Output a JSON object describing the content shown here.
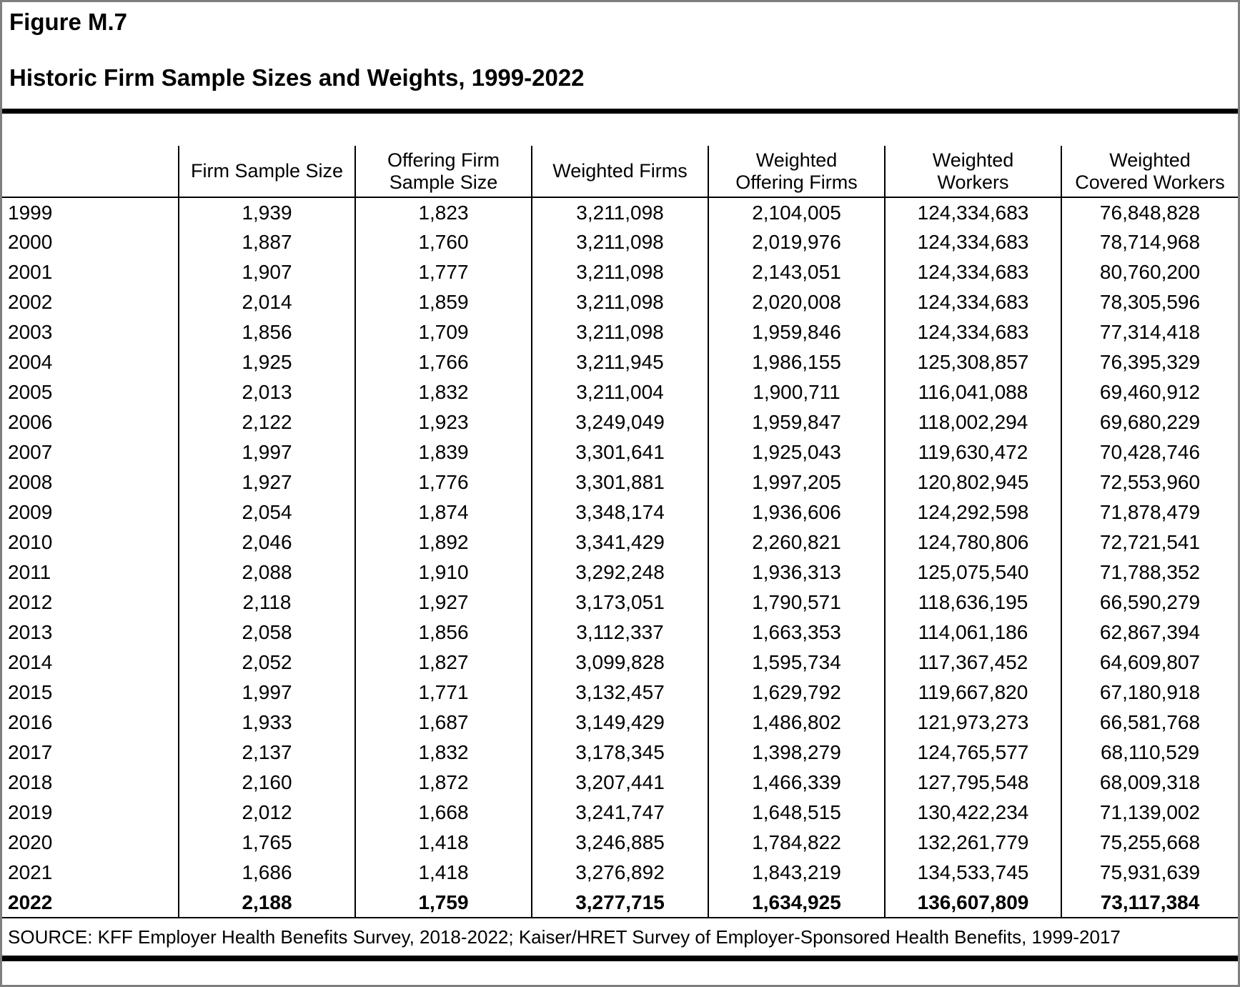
{
  "figure": {
    "label": "Figure M.7",
    "title": "Historic Firm Sample Sizes and Weights, 1999-2022"
  },
  "table": {
    "columns": [
      "",
      "Firm Sample Size",
      "Offering Firm\nSample Size",
      "Weighted Firms",
      "Weighted\nOffering Firms",
      "Weighted\nWorkers",
      "Weighted\nCovered Workers"
    ],
    "rows": [
      {
        "year": "1999",
        "values": [
          "1,939",
          "1,823",
          "3,211,098",
          "2,104,005",
          "124,334,683",
          "76,848,828"
        ],
        "bold": false
      },
      {
        "year": "2000",
        "values": [
          "1,887",
          "1,760",
          "3,211,098",
          "2,019,976",
          "124,334,683",
          "78,714,968"
        ],
        "bold": false
      },
      {
        "year": "2001",
        "values": [
          "1,907",
          "1,777",
          "3,211,098",
          "2,143,051",
          "124,334,683",
          "80,760,200"
        ],
        "bold": false
      },
      {
        "year": "2002",
        "values": [
          "2,014",
          "1,859",
          "3,211,098",
          "2,020,008",
          "124,334,683",
          "78,305,596"
        ],
        "bold": false
      },
      {
        "year": "2003",
        "values": [
          "1,856",
          "1,709",
          "3,211,098",
          "1,959,846",
          "124,334,683",
          "77,314,418"
        ],
        "bold": false
      },
      {
        "year": "2004",
        "values": [
          "1,925",
          "1,766",
          "3,211,945",
          "1,986,155",
          "125,308,857",
          "76,395,329"
        ],
        "bold": false
      },
      {
        "year": "2005",
        "values": [
          "2,013",
          "1,832",
          "3,211,004",
          "1,900,711",
          "116,041,088",
          "69,460,912"
        ],
        "bold": false
      },
      {
        "year": "2006",
        "values": [
          "2,122",
          "1,923",
          "3,249,049",
          "1,959,847",
          "118,002,294",
          "69,680,229"
        ],
        "bold": false
      },
      {
        "year": "2007",
        "values": [
          "1,997",
          "1,839",
          "3,301,641",
          "1,925,043",
          "119,630,472",
          "70,428,746"
        ],
        "bold": false
      },
      {
        "year": "2008",
        "values": [
          "1,927",
          "1,776",
          "3,301,881",
          "1,997,205",
          "120,802,945",
          "72,553,960"
        ],
        "bold": false
      },
      {
        "year": "2009",
        "values": [
          "2,054",
          "1,874",
          "3,348,174",
          "1,936,606",
          "124,292,598",
          "71,878,479"
        ],
        "bold": false
      },
      {
        "year": "2010",
        "values": [
          "2,046",
          "1,892",
          "3,341,429",
          "2,260,821",
          "124,780,806",
          "72,721,541"
        ],
        "bold": false
      },
      {
        "year": "2011",
        "values": [
          "2,088",
          "1,910",
          "3,292,248",
          "1,936,313",
          "125,075,540",
          "71,788,352"
        ],
        "bold": false
      },
      {
        "year": "2012",
        "values": [
          "2,118",
          "1,927",
          "3,173,051",
          "1,790,571",
          "118,636,195",
          "66,590,279"
        ],
        "bold": false
      },
      {
        "year": "2013",
        "values": [
          "2,058",
          "1,856",
          "3,112,337",
          "1,663,353",
          "114,061,186",
          "62,867,394"
        ],
        "bold": false
      },
      {
        "year": "2014",
        "values": [
          "2,052",
          "1,827",
          "3,099,828",
          "1,595,734",
          "117,367,452",
          "64,609,807"
        ],
        "bold": false
      },
      {
        "year": "2015",
        "values": [
          "1,997",
          "1,771",
          "3,132,457",
          "1,629,792",
          "119,667,820",
          "67,180,918"
        ],
        "bold": false
      },
      {
        "year": "2016",
        "values": [
          "1,933",
          "1,687",
          "3,149,429",
          "1,486,802",
          "121,973,273",
          "66,581,768"
        ],
        "bold": false
      },
      {
        "year": "2017",
        "values": [
          "2,137",
          "1,832",
          "3,178,345",
          "1,398,279",
          "124,765,577",
          "68,110,529"
        ],
        "bold": false
      },
      {
        "year": "2018",
        "values": [
          "2,160",
          "1,872",
          "3,207,441",
          "1,466,339",
          "127,795,548",
          "68,009,318"
        ],
        "bold": false
      },
      {
        "year": "2019",
        "values": [
          "2,012",
          "1,668",
          "3,241,747",
          "1,648,515",
          "130,422,234",
          "71,139,002"
        ],
        "bold": false
      },
      {
        "year": "2020",
        "values": [
          "1,765",
          "1,418",
          "3,246,885",
          "1,784,822",
          "132,261,779",
          "75,255,668"
        ],
        "bold": false
      },
      {
        "year": "2021",
        "values": [
          "1,686",
          "1,418",
          "3,276,892",
          "1,843,219",
          "134,533,745",
          "75,931,639"
        ],
        "bold": false
      },
      {
        "year": "2022",
        "values": [
          "2,188",
          "1,759",
          "3,277,715",
          "1,634,925",
          "136,607,809",
          "73,117,384"
        ],
        "bold": true
      }
    ]
  },
  "source": "SOURCE: KFF Employer Health Benefits Survey, 2018-2022; Kaiser/HRET Survey of Employer-Sponsored Health Benefits, 1999-2017",
  "colors": {
    "text": "#000000",
    "rule": "#000000",
    "outer_border": "#7f7f7f",
    "background": "#ffffff"
  }
}
